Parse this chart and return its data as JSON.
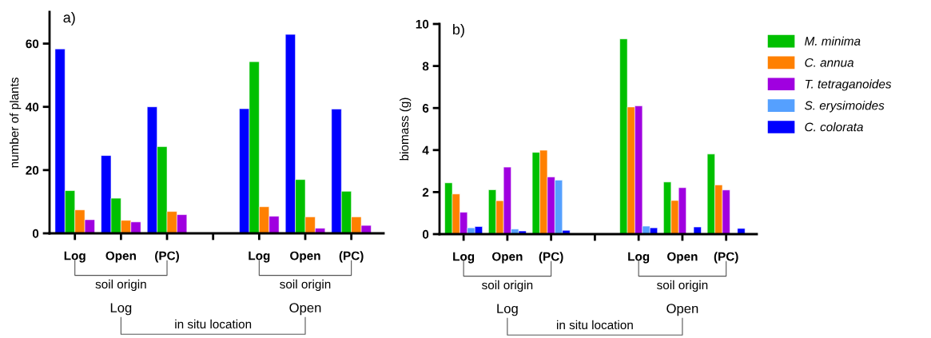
{
  "chart_data": [
    {
      "type": "bar",
      "title": "a)",
      "ylabel": "number of plants",
      "categories": [
        "Log",
        "Open",
        "(PC)",
        null,
        "Log",
        "Open",
        "(PC)"
      ],
      "ylim": [
        0,
        70
      ],
      "yticks": [
        0,
        20,
        40,
        60
      ],
      "grid": false,
      "legend": false,
      "series": [
        {
          "color": "#0000ff",
          "values": [
            58.3,
            24.6,
            40.0,
            null,
            39.4,
            62.9,
            39.3
          ]
        },
        {
          "color": "#00c000",
          "values": [
            13.5,
            11.1,
            27.4,
            null,
            54.3,
            17.0,
            13.3
          ]
        },
        {
          "color": "#ff8000",
          "values": [
            7.4,
            4.1,
            6.9,
            null,
            8.4,
            5.2,
            5.2
          ]
        },
        {
          "color": "#a000e0",
          "values": [
            4.3,
            3.6,
            5.9,
            null,
            5.4,
            1.6,
            2.5
          ]
        }
      ],
      "annotations": [
        "soil origin",
        "soil origin",
        "Log",
        "Open",
        "in situ location"
      ]
    },
    {
      "type": "bar",
      "title": "b)",
      "ylabel": "biomass (g)",
      "categories": [
        "Log",
        "Open",
        "(PC)",
        null,
        "Log",
        "Open",
        "(PC)"
      ],
      "ylim": [
        0,
        10
      ],
      "yticks": [
        0,
        2,
        4,
        6,
        8,
        10
      ],
      "grid": false,
      "legend": "right",
      "series": [
        {
          "name": "M. minima",
          "color": "#00c000",
          "values": [
            2.44,
            2.11,
            3.89,
            null,
            9.29,
            2.48,
            3.81
          ]
        },
        {
          "name": "C. annua",
          "color": "#ff8000",
          "values": [
            1.91,
            1.59,
            3.99,
            null,
            6.05,
            1.6,
            2.34
          ]
        },
        {
          "name": "T. tetraganoides",
          "color": "#a000e0",
          "values": [
            1.04,
            3.19,
            2.72,
            null,
            6.1,
            2.21,
            2.1
          ]
        },
        {
          "name": "S. erysimoides",
          "color": "#55a0ff",
          "values": [
            0.3,
            0.24,
            2.57,
            null,
            0.38,
            null,
            null
          ]
        },
        {
          "name": "C. colorata",
          "color": "#0000ff",
          "values": [
            0.36,
            0.15,
            0.18,
            null,
            0.3,
            0.34,
            0.27
          ]
        }
      ],
      "annotations": [
        "soil origin",
        "soil origin",
        "Log",
        "Open",
        "in situ location"
      ]
    }
  ]
}
